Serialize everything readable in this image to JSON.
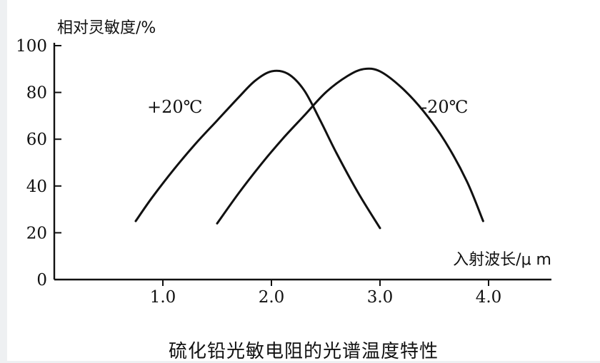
{
  "colors": {
    "background": "#ffffff",
    "ink": "#111111",
    "page": "#eef0f2"
  },
  "caption": "硫化铅光敏电阻的光谱温度特性",
  "chart_data": {
    "type": "line",
    "title": "硫化铅光敏电阻的光谱温度特性",
    "ylabel": "相对灵敏度/%",
    "xlabel": "入射波长/μ m",
    "xlim": [
      0.0,
      4.5
    ],
    "ylim": [
      0,
      100
    ],
    "xticks": [
      "1.0",
      "2.0",
      "3.0",
      "4.0"
    ],
    "yticks": [
      "0",
      "20",
      "40",
      "60",
      "80",
      "100"
    ],
    "grid": false,
    "series": [
      {
        "name": "+20℃",
        "x": [
          0.75,
          0.9,
          1.1,
          1.3,
          1.5,
          1.7,
          1.85,
          2.0,
          2.15,
          2.3,
          2.45,
          2.6,
          2.8,
          3.0
        ],
        "y": [
          25,
          35,
          47,
          58,
          68,
          78,
          85,
          89,
          88,
          81,
          68,
          54,
          37,
          22
        ]
      },
      {
        "name": "-20℃",
        "x": [
          1.5,
          1.7,
          1.9,
          2.1,
          2.3,
          2.5,
          2.7,
          2.85,
          3.0,
          3.2,
          3.4,
          3.6,
          3.8,
          3.95
        ],
        "y": [
          24,
          37,
          49,
          60,
          70,
          80,
          87,
          90,
          89,
          82,
          72,
          59,
          42,
          25
        ]
      }
    ]
  }
}
